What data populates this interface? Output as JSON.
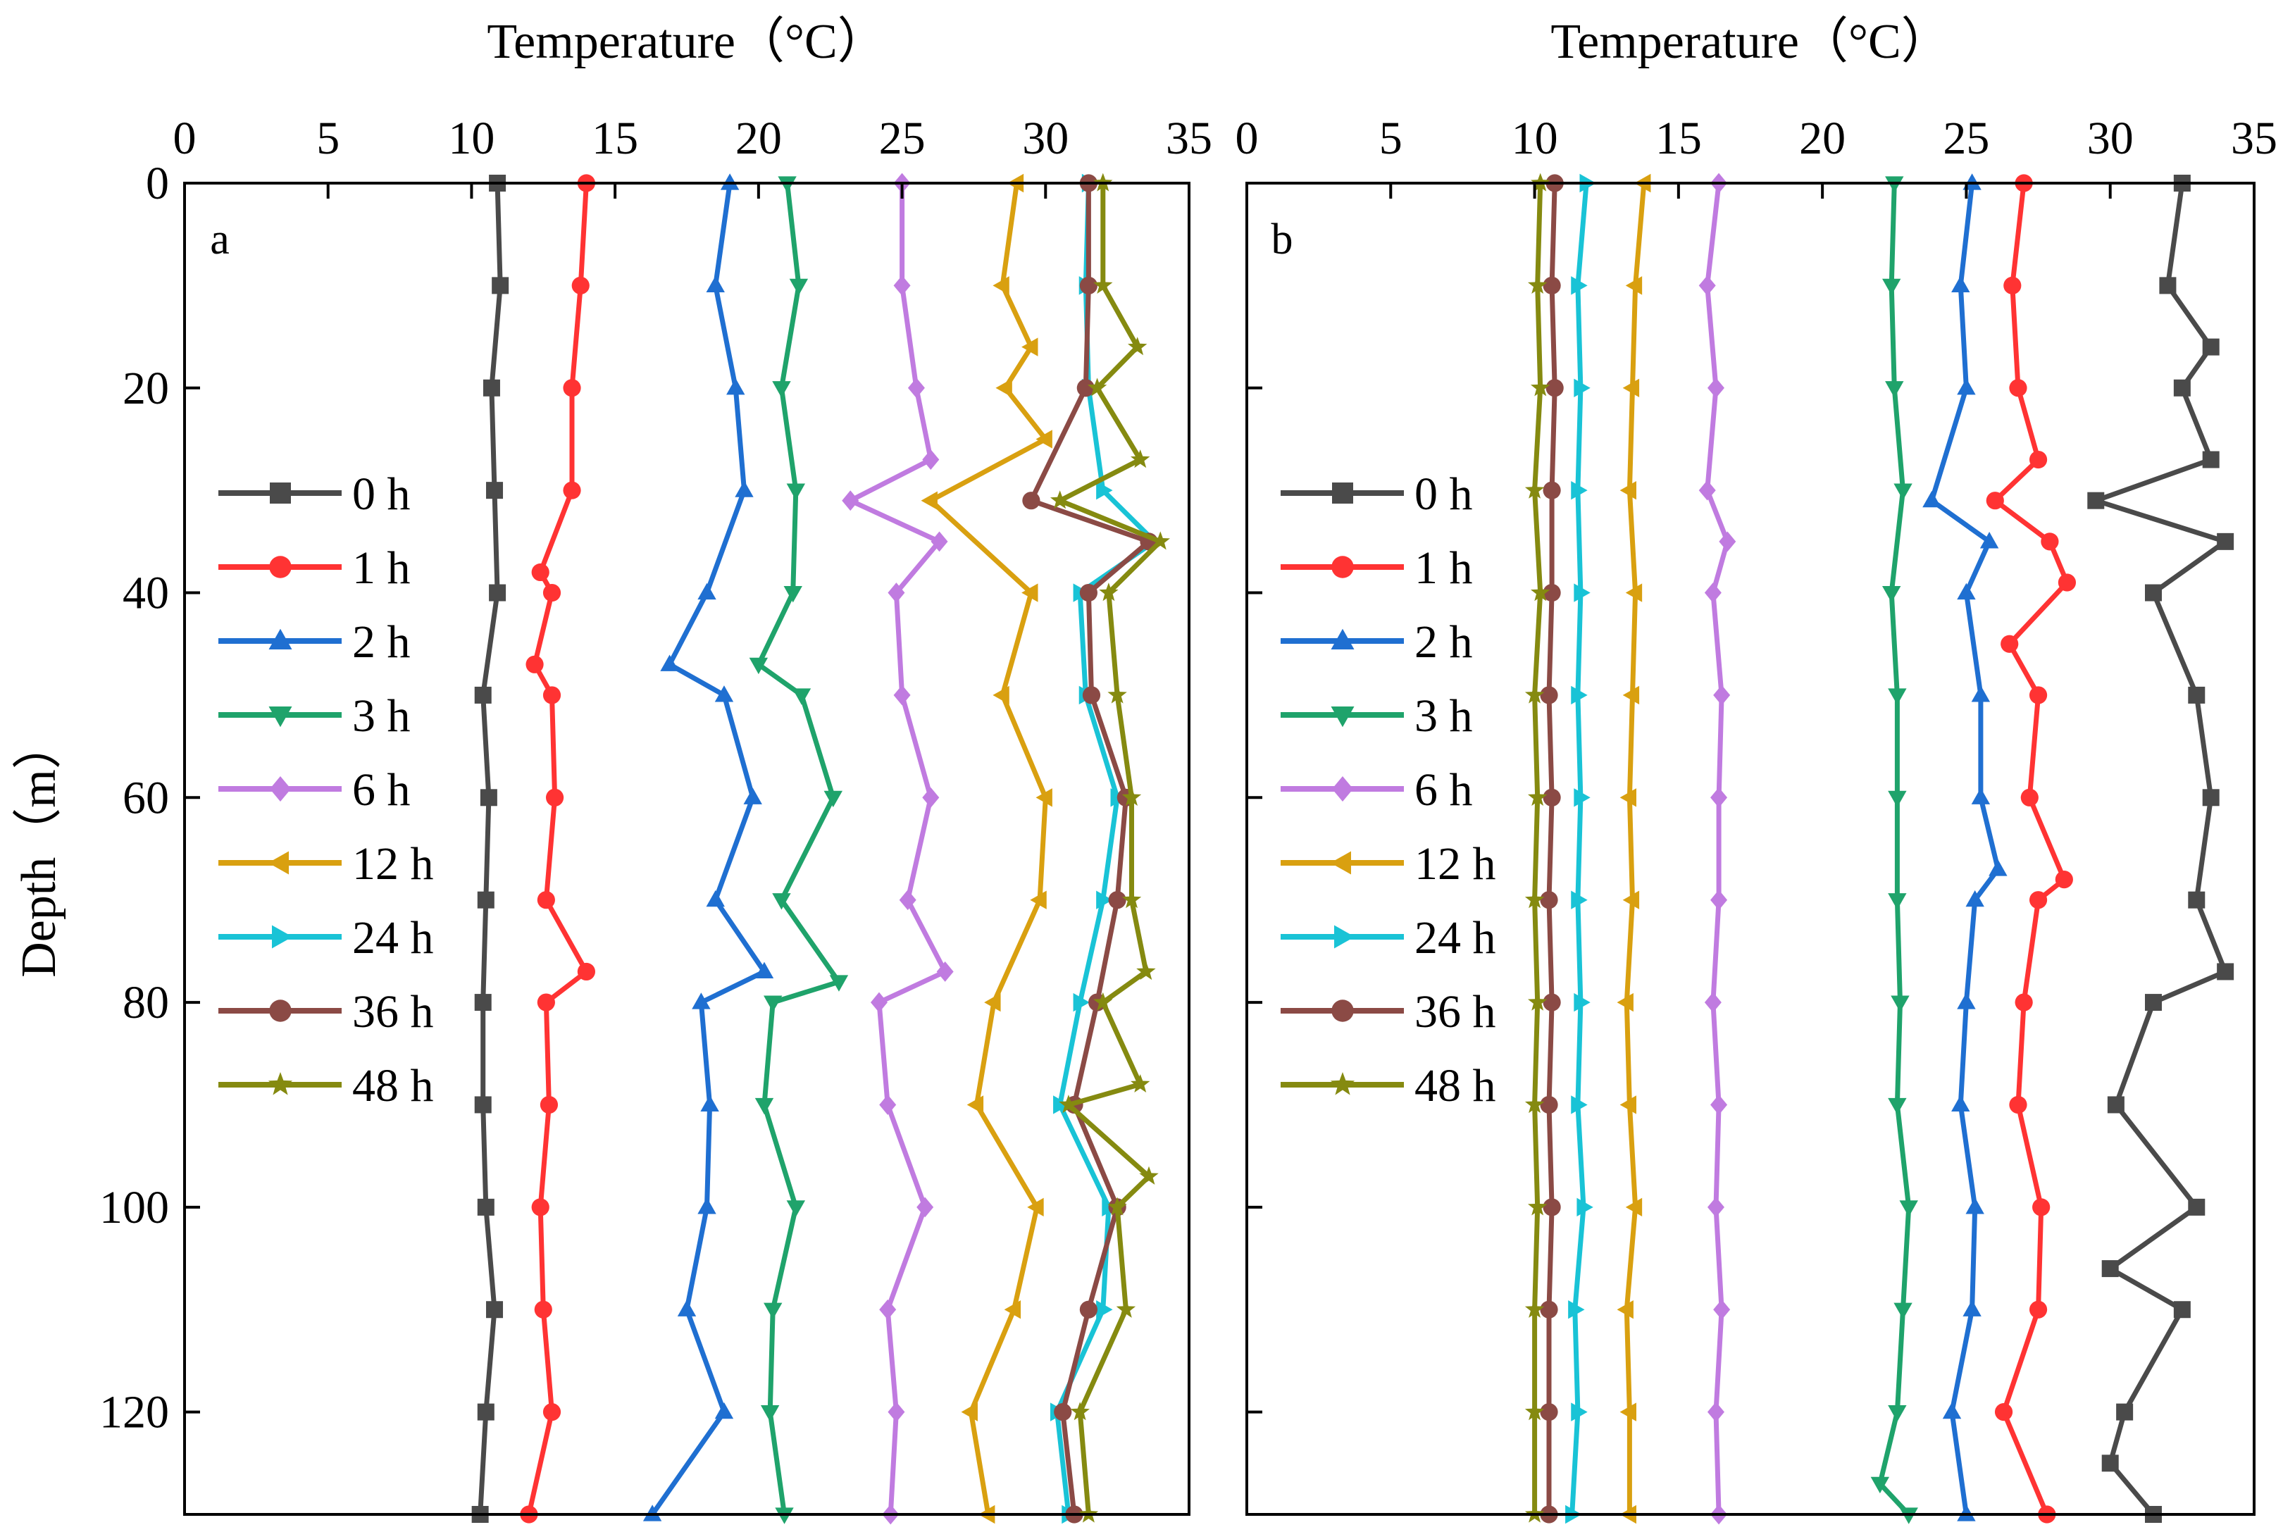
{
  "chart_data": [
    {
      "type": "line",
      "panel_label": "a",
      "xlabel": "Temperature（°C）",
      "ylabel": "Depth（m）",
      "xlim": [
        0,
        35
      ],
      "ylim": [
        0,
        130
      ],
      "y_inverted": true,
      "x_axis_position": "top",
      "xticks": [
        "0",
        "5",
        "10",
        "15",
        "20",
        "25",
        "30",
        "35"
      ],
      "yticks": [
        "0",
        "20",
        "40",
        "60",
        "80",
        "100",
        "120"
      ],
      "legend_position": "left-middle",
      "series": [
        {
          "name": "0 h",
          "color": "#4a4a4a",
          "marker": "square",
          "depth": [
            0,
            10,
            20,
            30,
            40,
            50,
            60,
            70,
            80,
            90,
            100,
            110,
            120,
            130
          ],
          "temp": [
            10.9,
            11.0,
            10.7,
            10.8,
            10.9,
            10.4,
            10.6,
            10.5,
            10.4,
            10.4,
            10.5,
            10.8,
            10.5,
            10.3
          ]
        },
        {
          "name": "1 h",
          "color": "#ff3333",
          "marker": "circle",
          "depth": [
            0,
            10,
            20,
            30,
            38,
            40,
            47,
            50,
            60,
            70,
            77,
            80,
            90,
            100,
            110,
            120,
            130
          ],
          "temp": [
            14.0,
            13.8,
            13.5,
            13.5,
            12.4,
            12.8,
            12.2,
            12.8,
            12.9,
            12.6,
            14.0,
            12.6,
            12.7,
            12.4,
            12.5,
            12.8,
            12.0
          ]
        },
        {
          "name": "2 h",
          "color": "#1f6fd1",
          "marker": "triangle-up",
          "depth": [
            0,
            10,
            20,
            30,
            40,
            47,
            50,
            60,
            70,
            77,
            80,
            90,
            100,
            110,
            120,
            130
          ],
          "temp": [
            19.0,
            18.5,
            19.2,
            19.5,
            18.2,
            16.9,
            18.8,
            19.8,
            18.5,
            20.2,
            18.0,
            18.3,
            18.2,
            17.5,
            18.8,
            16.3
          ]
        },
        {
          "name": "3 h",
          "color": "#1fa36b",
          "marker": "triangle-down",
          "depth": [
            0,
            10,
            20,
            30,
            40,
            47,
            50,
            60,
            70,
            78,
            80,
            90,
            100,
            110,
            120,
            130
          ],
          "temp": [
            21.0,
            21.4,
            20.8,
            21.3,
            21.2,
            20.0,
            21.5,
            22.6,
            20.8,
            22.8,
            20.5,
            20.2,
            21.3,
            20.5,
            20.4,
            20.9
          ]
        },
        {
          "name": "6 h",
          "color": "#c07be0",
          "marker": "diamond",
          "depth": [
            0,
            10,
            20,
            27,
            31,
            35,
            40,
            50,
            60,
            70,
            77,
            80,
            90,
            100,
            110,
            120,
            130
          ],
          "temp": [
            25.0,
            25.0,
            25.5,
            26.0,
            23.2,
            26.3,
            24.8,
            25.0,
            26.0,
            25.2,
            26.5,
            24.2,
            24.5,
            25.8,
            24.5,
            24.8,
            24.6
          ]
        },
        {
          "name": "12 h",
          "color": "#d9a010",
          "marker": "triangle-left",
          "depth": [
            0,
            10,
            16,
            20,
            25,
            31,
            40,
            50,
            60,
            70,
            80,
            90,
            100,
            110,
            120,
            130
          ],
          "temp": [
            29.0,
            28.5,
            29.5,
            28.6,
            30.0,
            26.0,
            29.5,
            28.5,
            30.0,
            29.8,
            28.2,
            27.6,
            29.7,
            28.9,
            27.4,
            28.0
          ]
        },
        {
          "name": "24 h",
          "color": "#19c3d6",
          "marker": "triangle-right",
          "depth": [
            0,
            10,
            20,
            30,
            35,
            40,
            50,
            60,
            70,
            80,
            90,
            100,
            110,
            120,
            130
          ],
          "temp": [
            31.5,
            31.4,
            31.5,
            32.0,
            33.8,
            31.2,
            31.4,
            32.5,
            32.0,
            31.2,
            30.5,
            32.2,
            32.0,
            30.4,
            30.8
          ]
        },
        {
          "name": "36 h",
          "color": "#8b4a45",
          "marker": "circle",
          "depth": [
            0,
            10,
            20,
            31,
            35,
            40,
            50,
            60,
            70,
            80,
            90,
            100,
            110,
            120,
            130
          ],
          "temp": [
            31.5,
            31.5,
            31.4,
            29.5,
            33.6,
            31.5,
            31.6,
            32.8,
            32.5,
            31.8,
            31.0,
            32.5,
            31.5,
            30.6,
            31.0
          ]
        },
        {
          "name": "48 h",
          "color": "#858a10",
          "marker": "star",
          "depth": [
            0,
            10,
            16,
            20,
            27,
            31,
            35,
            40,
            50,
            60,
            70,
            77,
            80,
            88,
            90,
            97,
            100,
            110,
            120,
            130
          ],
          "temp": [
            32.0,
            32.0,
            33.2,
            31.8,
            33.3,
            30.5,
            34.0,
            32.2,
            32.5,
            33.0,
            33.0,
            33.5,
            32.0,
            33.3,
            30.8,
            33.6,
            32.5,
            32.8,
            31.2,
            31.5
          ]
        }
      ]
    },
    {
      "type": "line",
      "panel_label": "b",
      "xlabel": "Temperature（°C）",
      "ylabel": "",
      "xlim": [
        0,
        35
      ],
      "ylim": [
        0,
        130
      ],
      "y_inverted": true,
      "x_axis_position": "top",
      "xticks": [
        "0",
        "5",
        "10",
        "15",
        "20",
        "25",
        "30",
        "35"
      ],
      "yticks": [],
      "legend_position": "left-middle",
      "series": [
        {
          "name": "0 h",
          "color": "#4a4a4a",
          "marker": "square",
          "depth": [
            0,
            10,
            16,
            20,
            27,
            31,
            35,
            40,
            50,
            60,
            70,
            77,
            80,
            90,
            100,
            106,
            110,
            120,
            125,
            130
          ],
          "temp": [
            32.5,
            32.0,
            33.5,
            32.5,
            33.5,
            29.5,
            34.0,
            31.5,
            33.0,
            33.5,
            33.0,
            34.0,
            31.5,
            30.2,
            33.0,
            30.0,
            32.5,
            30.5,
            30.0,
            31.5
          ]
        },
        {
          "name": "1 h",
          "color": "#ff3333",
          "marker": "circle",
          "depth": [
            0,
            10,
            20,
            27,
            31,
            35,
            39,
            45,
            50,
            60,
            68,
            70,
            80,
            90,
            100,
            110,
            120,
            130
          ],
          "temp": [
            27.0,
            26.6,
            26.8,
            27.5,
            26.0,
            27.9,
            28.5,
            26.5,
            27.5,
            27.2,
            28.4,
            27.5,
            27.0,
            26.8,
            27.6,
            27.5,
            26.3,
            27.8
          ]
        },
        {
          "name": "2 h",
          "color": "#1f6fd1",
          "marker": "triangle-up",
          "depth": [
            0,
            10,
            20,
            31,
            35,
            40,
            50,
            60,
            67,
            70,
            80,
            90,
            100,
            110,
            120,
            130
          ],
          "temp": [
            25.2,
            24.8,
            25.0,
            23.8,
            25.8,
            25.0,
            25.5,
            25.5,
            26.1,
            25.3,
            25.0,
            24.8,
            25.3,
            25.2,
            24.5,
            25.0
          ]
        },
        {
          "name": "3 h",
          "color": "#1fa36b",
          "marker": "triangle-down",
          "depth": [
            0,
            10,
            20,
            30,
            40,
            50,
            60,
            70,
            80,
            90,
            100,
            110,
            120,
            127,
            130
          ],
          "temp": [
            22.5,
            22.4,
            22.5,
            22.8,
            22.4,
            22.6,
            22.6,
            22.6,
            22.7,
            22.6,
            23.0,
            22.8,
            22.6,
            22.0,
            23.0
          ]
        },
        {
          "name": "6 h",
          "color": "#c07be0",
          "marker": "diamond",
          "depth": [
            0,
            10,
            20,
            30,
            35,
            40,
            50,
            60,
            70,
            80,
            90,
            100,
            110,
            120,
            130
          ],
          "temp": [
            16.4,
            16.0,
            16.3,
            16.0,
            16.7,
            16.2,
            16.5,
            16.4,
            16.4,
            16.2,
            16.4,
            16.3,
            16.5,
            16.3,
            16.4
          ]
        },
        {
          "name": "12 h",
          "color": "#d9a010",
          "marker": "triangle-left",
          "depth": [
            0,
            10,
            20,
            30,
            40,
            50,
            60,
            70,
            80,
            90,
            100,
            110,
            120,
            130
          ],
          "temp": [
            13.8,
            13.5,
            13.4,
            13.3,
            13.5,
            13.4,
            13.3,
            13.4,
            13.2,
            13.3,
            13.5,
            13.2,
            13.3,
            13.3
          ]
        },
        {
          "name": "24 h",
          "color": "#19c3d6",
          "marker": "triangle-right",
          "depth": [
            0,
            10,
            20,
            30,
            40,
            50,
            60,
            70,
            80,
            90,
            100,
            110,
            120,
            130
          ],
          "temp": [
            11.8,
            11.5,
            11.6,
            11.5,
            11.6,
            11.5,
            11.6,
            11.5,
            11.6,
            11.5,
            11.7,
            11.4,
            11.5,
            11.3
          ]
        },
        {
          "name": "36 h",
          "color": "#8b4a45",
          "marker": "circle",
          "depth": [
            0,
            10,
            20,
            30,
            40,
            50,
            60,
            70,
            80,
            90,
            100,
            110,
            120,
            130
          ],
          "temp": [
            10.7,
            10.6,
            10.7,
            10.6,
            10.6,
            10.5,
            10.6,
            10.5,
            10.6,
            10.5,
            10.6,
            10.5,
            10.5,
            10.5
          ]
        },
        {
          "name": "48 h",
          "color": "#858a10",
          "marker": "star",
          "depth": [
            0,
            10,
            20,
            30,
            40,
            50,
            60,
            70,
            80,
            90,
            100,
            110,
            120,
            130
          ],
          "temp": [
            10.2,
            10.1,
            10.2,
            10.0,
            10.2,
            10.0,
            10.1,
            10.0,
            10.1,
            10.0,
            10.1,
            10.0,
            10.0,
            10.0
          ]
        }
      ]
    }
  ]
}
